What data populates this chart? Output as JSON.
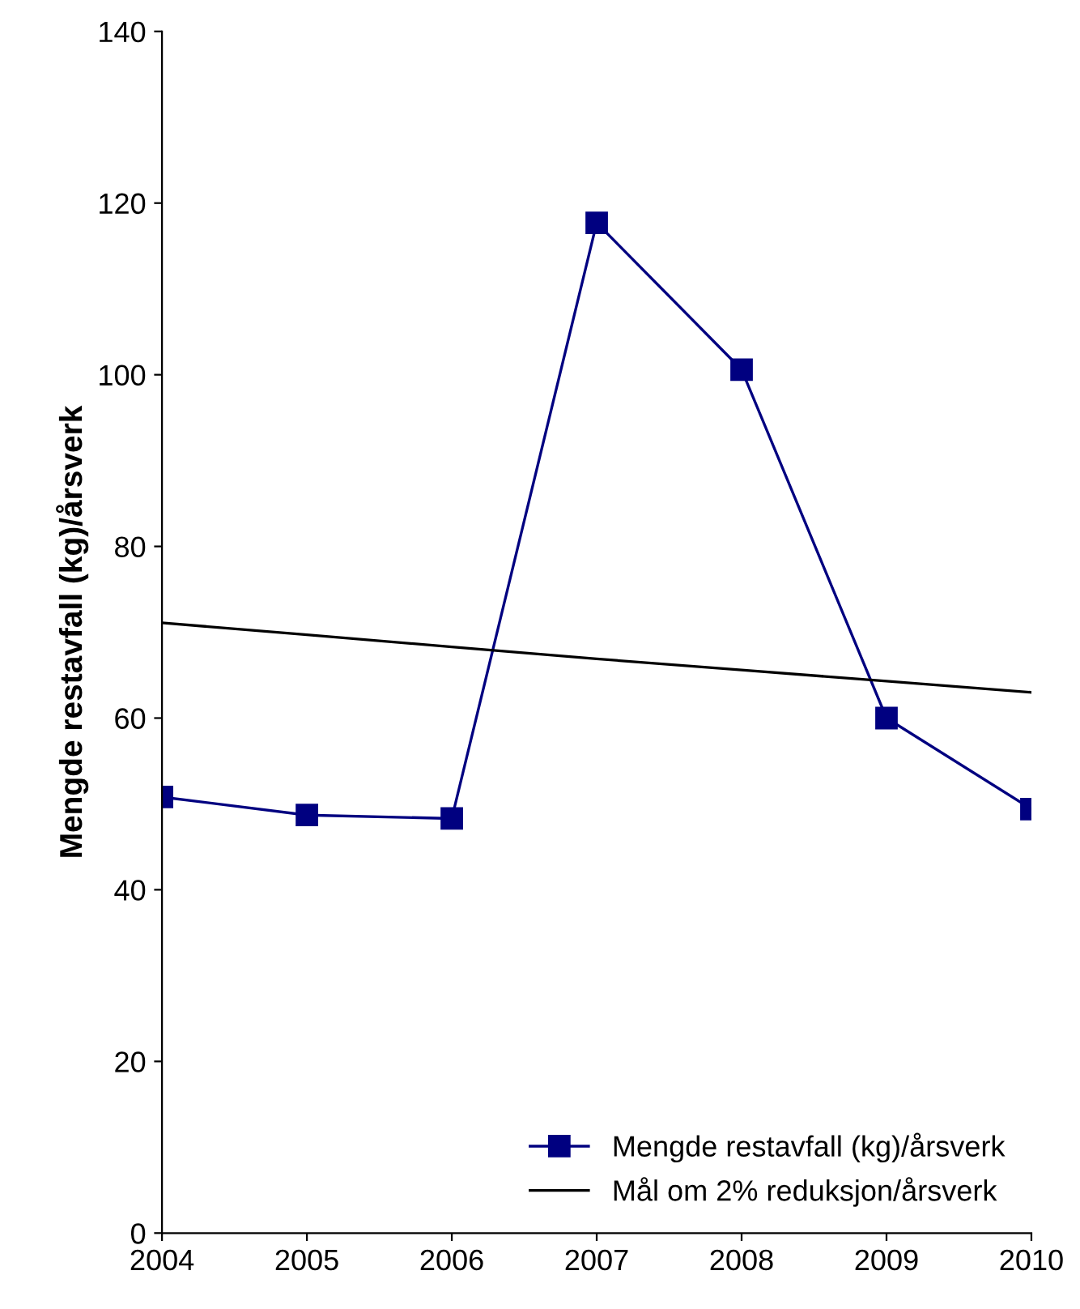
{
  "chart_data": {
    "type": "line",
    "ylabel": "Mengde restavfall (kg)/årsverk",
    "x": [
      2004,
      2005,
      2006,
      2007,
      2008,
      2009,
      2010
    ],
    "series": [
      {
        "name": "Mengde restavfall (kg)/årsverk",
        "color": "#000080",
        "values": [
          50.8,
          48.7,
          48.3,
          117.7,
          100.6,
          60.0,
          49.4
        ],
        "marker": "square"
      },
      {
        "name": "Mål om 2% reduksjon/årsverk",
        "color": "#000000",
        "values": [
          71.1,
          69.7,
          68.3,
          66.9,
          65.6,
          64.3,
          63.0
        ],
        "marker": "none"
      }
    ],
    "xlim": [
      2004,
      2010
    ],
    "xticks": [
      2004,
      2005,
      2006,
      2007,
      2008,
      2009,
      2010
    ],
    "ylim": [
      0,
      140
    ],
    "yticks": [
      0,
      20,
      40,
      60,
      80,
      100,
      120,
      140
    ],
    "grid": false,
    "legend": "bottom right"
  }
}
